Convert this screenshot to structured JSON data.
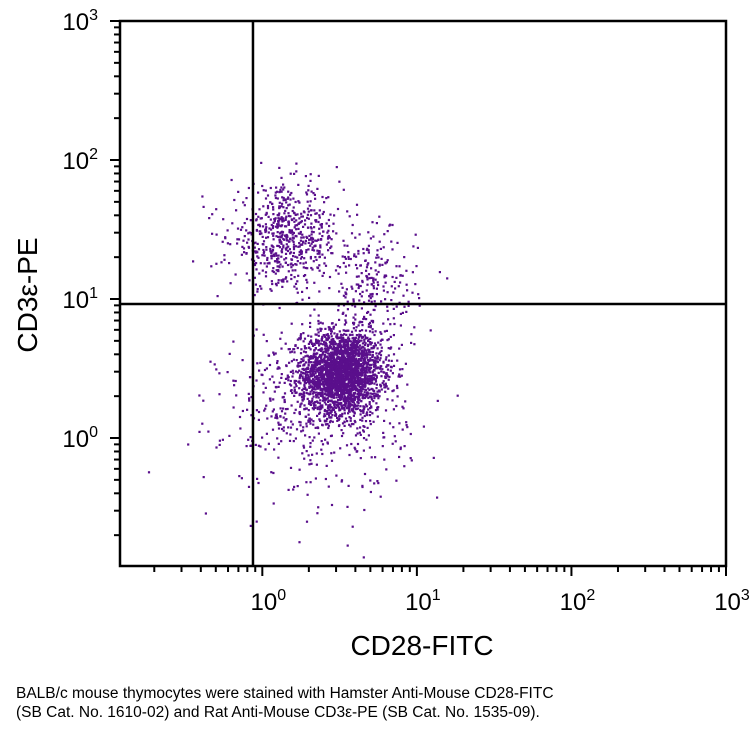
{
  "chart_data": {
    "type": "scatter",
    "title": "",
    "xlabel": "CD28-FITC",
    "ylabel": "CD3ε-PE",
    "x_scale": "log",
    "y_scale": "log",
    "xlim": [
      0.12,
      1000
    ],
    "ylim": [
      0.12,
      1000
    ],
    "x_ticks": [
      1,
      10,
      100,
      1000
    ],
    "y_ticks": [
      1,
      10,
      100,
      1000
    ],
    "x_tick_labels": [
      {
        "base": "10",
        "exp": "0"
      },
      {
        "base": "10",
        "exp": "1"
      },
      {
        "base": "10",
        "exp": "2"
      },
      {
        "base": "10",
        "exp": "3"
      }
    ],
    "y_tick_labels": [
      {
        "base": "10",
        "exp": "0"
      },
      {
        "base": "10",
        "exp": "1"
      },
      {
        "base": "10",
        "exp": "2"
      },
      {
        "base": "10",
        "exp": "3"
      }
    ],
    "quadrant_gate": {
      "x": 0.87,
      "y": 9.2
    },
    "grid": false,
    "point_color": "#5a0f8c",
    "populations": [
      {
        "center": [
          3.2,
          3.0
        ],
        "spread_log10": [
          0.13,
          0.15
        ],
        "count": 2600
      },
      {
        "center": [
          1.4,
          28
        ],
        "spread_log10": [
          0.18,
          0.18
        ],
        "count": 650
      },
      {
        "center": [
          2.2,
          1.6
        ],
        "spread_log10": [
          0.3,
          0.3
        ],
        "count": 500
      },
      {
        "center": [
          5.0,
          12.0
        ],
        "spread_log10": [
          0.15,
          0.22
        ],
        "count": 250
      }
    ]
  },
  "caption": {
    "line1": "BALB/c mouse thymocytes were stained with Hamster Anti-Mouse CD28-FITC",
    "line2": "(SB Cat. No. 1610-02) and Rat Anti-Mouse CD3ε-PE (SB Cat. No. 1535-09)."
  }
}
